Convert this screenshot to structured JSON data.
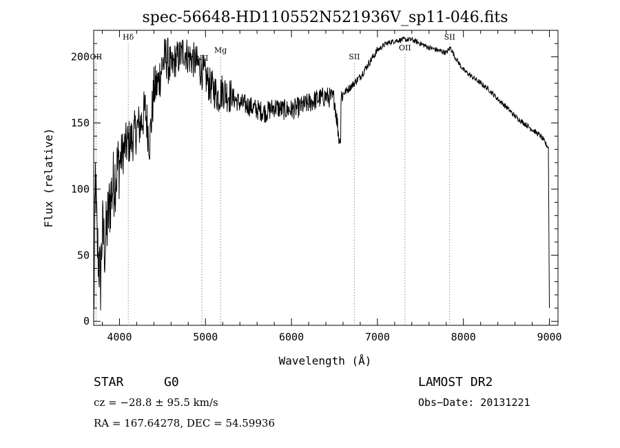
{
  "chart_data": {
    "type": "line",
    "title": "spec-56648-HD110552N521936V_sp11-046.fits",
    "xlabel": "Wavelength (Å)",
    "ylabel": "Flux (relative)",
    "xlim": [
      3700,
      9100
    ],
    "ylim": [
      -3,
      220
    ],
    "x_ticks": [
      4000,
      5000,
      6000,
      7000,
      8000,
      9000
    ],
    "y_ticks": [
      0,
      50,
      100,
      150,
      200
    ],
    "x_tick_labels": [
      "4000",
      "5000",
      "6000",
      "7000",
      "8000",
      "9000"
    ],
    "y_tick_labels": [
      "0",
      "50",
      "100",
      "150",
      "200"
    ],
    "grid": false,
    "series": [
      {
        "x": [
          3700,
          3720,
          3740,
          3760,
          3780,
          3800,
          3830,
          3860,
          3900,
          3950,
          4000,
          4050,
          4100,
          4150,
          4200,
          4250,
          4300,
          4350,
          4400,
          4450,
          4500,
          4550,
          4600,
          4650,
          4700,
          4750,
          4800,
          4850,
          4900,
          4950,
          5000,
          5050,
          5100,
          5150,
          5200,
          5250,
          5300,
          5400,
          5500,
          5600,
          5700,
          5800,
          5900,
          6000,
          6100,
          6200,
          6300,
          6400,
          6500,
          6560,
          6570,
          6600,
          6700,
          6800,
          6900,
          7000,
          7100,
          7200,
          7300,
          7400,
          7500,
          7600,
          7700,
          7800,
          7850,
          7900,
          8000,
          8100,
          8200,
          8300,
          8400,
          8500,
          8600,
          8700,
          8800,
          8900,
          8950,
          8990,
          9000
        ],
        "y": [
          0,
          110,
          60,
          45,
          30,
          70,
          55,
          75,
          95,
          110,
          120,
          130,
          135,
          138,
          145,
          150,
          160,
          135,
          175,
          180,
          195,
          200,
          190,
          198,
          200,
          205,
          200,
          198,
          195,
          190,
          185,
          178,
          175,
          170,
          175,
          172,
          170,
          165,
          163,
          160,
          158,
          162,
          160,
          160,
          162,
          165,
          168,
          170,
          168,
          135,
          170,
          172,
          178,
          185,
          195,
          205,
          210,
          212,
          213,
          213,
          210,
          207,
          205,
          203,
          207,
          200,
          190,
          185,
          180,
          175,
          168,
          162,
          155,
          150,
          145,
          140,
          135,
          131,
          10
        ]
      }
    ],
    "annotations": [
      {
        "label": "OII",
        "wavelength": 3727,
        "y": 198
      },
      {
        "label": "Hδ",
        "wavelength": 4102,
        "y": 213
      },
      {
        "label": "NII",
        "wavelength": 4959,
        "y": 197
      },
      {
        "label": "Mg",
        "wavelength": 5175,
        "y": 203
      },
      {
        "label": "SII",
        "wavelength": 6731,
        "y": 198
      },
      {
        "label": "OII",
        "wavelength": 7320,
        "y": 205
      },
      {
        "label": "SII",
        "wavelength": 7840,
        "y": 213
      }
    ]
  },
  "footer": {
    "class_label": "STAR",
    "subclass": "G0",
    "cz": "cz = −28.8 ± 95.5 km/s",
    "coords": "RA = 167.64278, DEC =  54.59936",
    "survey": "LAMOST DR2",
    "obs_date": "Obs−Date: 20131221"
  }
}
